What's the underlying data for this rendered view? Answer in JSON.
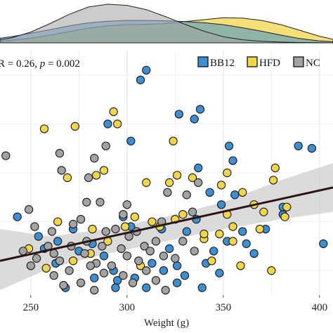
{
  "chart_data": {
    "type": "scatter",
    "stat_annotation": {
      "text_r": "R = 0.26, ",
      "text_p": "p",
      "text_rest": " = 0.002"
    },
    "xlabel": "Weight (g)",
    "xlim": [
      234,
      407
    ],
    "ylim": [
      0,
      100
    ],
    "x_ticks": [
      250,
      300,
      350,
      400
    ],
    "x_tick_labels": [
      "250",
      "300",
      "350",
      "400"
    ],
    "grid": true,
    "legend_position": "top-right",
    "colors": {
      "BB12": "#3d8fd1",
      "HFD": "#f1d54a",
      "NC": "#a3a3a3",
      "regression": "#2b1414",
      "band": "#cfcfcf"
    },
    "series": [
      {
        "name": "BB12",
        "points": [
          [
            310,
            92
          ],
          [
            307,
            88
          ],
          [
            327,
            74
          ],
          [
            338,
            76
          ],
          [
            335,
            72
          ],
          [
            290,
            70
          ],
          [
            302,
            63
          ],
          [
            337,
            52
          ],
          [
            353,
            61
          ],
          [
            355,
            55
          ],
          [
            389,
            61
          ],
          [
            396,
            60
          ],
          [
            343,
            42
          ],
          [
            356,
            41
          ],
          [
            298,
            32
          ],
          [
            302,
            28
          ],
          [
            318,
            27
          ],
          [
            322,
            19
          ],
          [
            331,
            26
          ],
          [
            336,
            31
          ],
          [
            349,
            37
          ],
          [
            352,
            22
          ],
          [
            362,
            21
          ],
          [
            366,
            17
          ],
          [
            372,
            27
          ],
          [
            381,
            33
          ],
          [
            402,
            21
          ],
          [
            243,
            32
          ],
          [
            254,
            24
          ],
          [
            257,
            19
          ],
          [
            264,
            22
          ],
          [
            272,
            27
          ],
          [
            282,
            21
          ],
          [
            288,
            16
          ],
          [
            293,
            10
          ],
          [
            295,
            6
          ],
          [
            304,
            7
          ],
          [
            313,
            13
          ],
          [
            319,
            10
          ],
          [
            326,
            12
          ],
          [
            330,
            8
          ],
          [
            341,
            13
          ],
          [
            345,
            18
          ],
          [
            348,
            9
          ],
          [
            360,
            26
          ],
          [
            381,
            36
          ],
          [
            268,
            3
          ],
          [
            283,
            7
          ],
          [
            294,
            3
          ],
          [
            310,
            3
          ],
          [
            326,
            5
          ],
          [
            339,
            3
          ],
          [
            263,
            13
          ],
          [
            275,
            18
          ]
        ]
      },
      {
        "name": "HFD",
        "points": [
          [
            257,
            68
          ],
          [
            273,
            69
          ],
          [
            295,
            70
          ],
          [
            293,
            75
          ],
          [
            324,
            63
          ],
          [
            269,
            48
          ],
          [
            284,
            49
          ],
          [
            288,
            51
          ],
          [
            310,
            46
          ],
          [
            322,
            46
          ],
          [
            326,
            49
          ],
          [
            334,
            48
          ],
          [
            325,
            31
          ],
          [
            349,
            45
          ],
          [
            352,
            50
          ],
          [
            360,
            42
          ],
          [
            377,
            52
          ],
          [
            376,
            47
          ],
          [
            383,
            36
          ],
          [
            366,
            37
          ],
          [
            371,
            34
          ],
          [
            369,
            27
          ],
          [
            382,
            32
          ],
          [
            352,
            33
          ],
          [
            258,
            11
          ],
          [
            272,
            14
          ],
          [
            281,
            17
          ],
          [
            290,
            22
          ],
          [
            299,
            28
          ],
          [
            304,
            32
          ],
          [
            313,
            30
          ],
          [
            317,
            28
          ],
          [
            329,
            33
          ],
          [
            340,
            23
          ],
          [
            344,
            14
          ],
          [
            355,
            22
          ],
          [
            359,
            12
          ],
          [
            375,
            10
          ],
          [
            264,
            30
          ],
          [
            249,
            19
          ],
          [
            340,
            25
          ],
          [
            307,
            12
          ],
          [
            348,
            25
          ],
          [
            355,
            28
          ],
          [
            282,
            27
          ]
        ]
      },
      {
        "name": "NC",
        "points": [
          [
            237,
            57
          ],
          [
            249,
            35
          ],
          [
            252,
            28
          ],
          [
            261,
            26
          ],
          [
            265,
            58
          ],
          [
            266,
            51
          ],
          [
            280,
            48
          ],
          [
            279,
            38
          ],
          [
            283,
            56
          ],
          [
            289,
            61
          ],
          [
            276,
            31
          ],
          [
            286,
            38
          ],
          [
            294,
            27
          ],
          [
            298,
            33
          ],
          [
            300,
            37
          ],
          [
            305,
            26
          ],
          [
            315,
            22
          ],
          [
            318,
            30
          ],
          [
            321,
            42
          ],
          [
            331,
            41
          ],
          [
            334,
            34
          ],
          [
            337,
            46
          ],
          [
            319,
            16
          ],
          [
            309,
            20
          ],
          [
            297,
            19
          ],
          [
            284,
            13
          ],
          [
            279,
            22
          ],
          [
            271,
            20
          ],
          [
            265,
            14
          ],
          [
            270,
            10
          ],
          [
            276,
            5
          ],
          [
            283,
            2
          ],
          [
            288,
            9
          ],
          [
            292,
            12
          ],
          [
            298,
            8
          ],
          [
            303,
            5
          ],
          [
            306,
            14
          ],
          [
            312,
            18
          ],
          [
            315,
            6
          ],
          [
            320,
            2
          ],
          [
            325,
            15
          ],
          [
            329,
            22
          ],
          [
            246,
            18
          ],
          [
            253,
            15
          ],
          [
            259,
            20
          ],
          [
            262,
            8
          ],
          [
            267,
            4
          ],
          [
            281,
            12
          ],
          [
            287,
            20
          ],
          [
            300,
            16
          ],
          [
            310,
            10
          ],
          [
            335,
            18
          ],
          [
            272,
            29
          ],
          [
            262,
            17
          ],
          [
            250,
            12
          ],
          [
            278,
            17
          ],
          [
            289,
            26
          ],
          [
            301,
            24
          ]
        ]
      }
    ],
    "regression": {
      "x": [
        234,
        407
      ],
      "y": [
        14,
        44
      ]
    },
    "confidence_band": {
      "x": [
        234,
        260,
        290,
        320,
        350,
        380,
        407
      ],
      "lower": [
        2,
        11,
        17,
        22,
        27,
        31,
        34
      ],
      "upper": [
        27,
        24,
        27,
        32,
        38,
        47,
        54
      ]
    },
    "density": {
      "x": [
        234,
        240,
        250,
        260,
        270,
        280,
        290,
        300,
        310,
        320,
        330,
        340,
        350,
        360,
        370,
        380,
        390,
        400,
        407
      ],
      "BB12": [
        0.12,
        0.16,
        0.25,
        0.34,
        0.44,
        0.52,
        0.56,
        0.58,
        0.58,
        0.57,
        0.55,
        0.52,
        0.47,
        0.39,
        0.3,
        0.2,
        0.11,
        0.05,
        0.03
      ],
      "HFD": [
        0.05,
        0.07,
        0.12,
        0.2,
        0.29,
        0.38,
        0.44,
        0.47,
        0.48,
        0.5,
        0.55,
        0.6,
        0.65,
        0.64,
        0.58,
        0.47,
        0.32,
        0.17,
        0.09
      ],
      "NC": [
        0.08,
        0.13,
        0.28,
        0.5,
        0.74,
        0.93,
        1.0,
        0.97,
        0.86,
        0.68,
        0.48,
        0.3,
        0.16,
        0.08,
        0.04,
        0.02,
        0.01,
        0.005,
        0.0
      ]
    }
  }
}
